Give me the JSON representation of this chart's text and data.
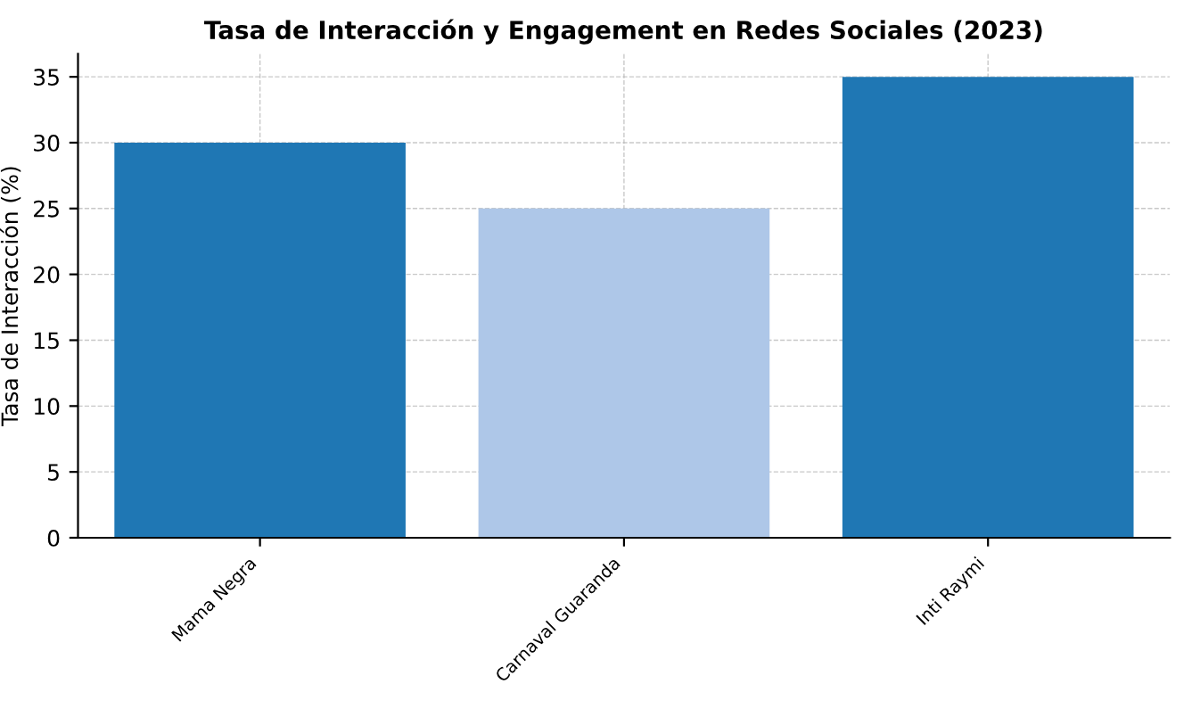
{
  "chart_data": {
    "type": "bar",
    "title": "Tasa de Interacción y Engagement en Redes Sociales (2023)",
    "ylabel": "Tasa de Interacción (%)",
    "categories": [
      "Mama Negra",
      "Carnaval Guaranda",
      "Inti Raymi"
    ],
    "values": [
      30,
      25,
      35
    ],
    "colors": [
      "#1f77b4",
      "#aec7e8",
      "#1f77b4"
    ],
    "ylim": [
      0,
      36.75
    ],
    "yticks": [
      0,
      5,
      10,
      15,
      20,
      25,
      30,
      35
    ],
    "grid": true
  }
}
